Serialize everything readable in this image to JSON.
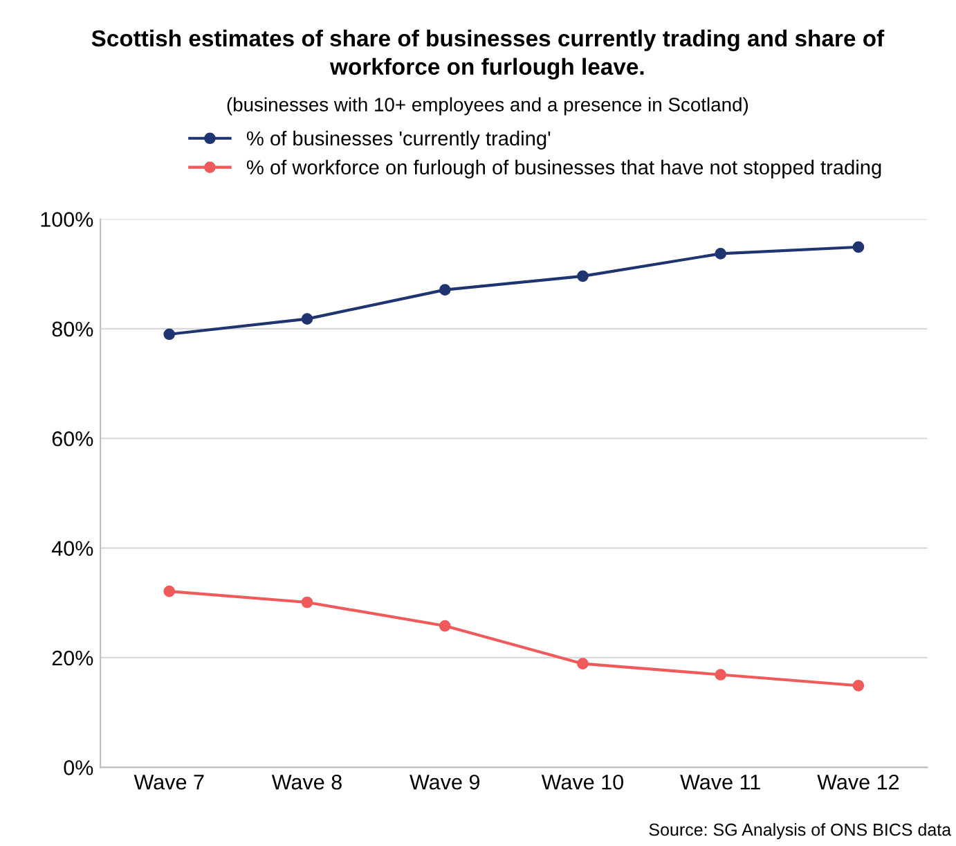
{
  "chart_data": {
    "type": "line",
    "title": "Scottish estimates of share of businesses currently trading and share of\nworkforce on furlough leave.",
    "subtitle": "(businesses with 10+ employees and a presence in Scotland)",
    "categories": [
      "Wave 7",
      "Wave 8",
      "Wave 9",
      "Wave 10",
      "Wave 11",
      "Wave 12"
    ],
    "series": [
      {
        "name": "% of businesses 'currently trading'",
        "color": "#1f3470",
        "values": [
          79.0,
          81.8,
          87.1,
          89.6,
          93.7,
          94.9
        ]
      },
      {
        "name": "% of workforce on furlough of businesses that have not stopped trading",
        "color": "#f05a5a",
        "values": [
          32.1,
          30.1,
          25.8,
          18.9,
          16.9,
          14.9
        ]
      }
    ],
    "ylim": [
      0,
      100
    ],
    "yticks": [
      {
        "value": 0,
        "label": "0%"
      },
      {
        "value": 20,
        "label": "20%"
      },
      {
        "value": 40,
        "label": "40%"
      },
      {
        "value": 60,
        "label": "60%"
      },
      {
        "value": 80,
        "label": "80%"
      },
      {
        "value": 100,
        "label": "100%"
      }
    ],
    "grid": "y",
    "legend": "top",
    "marker": "circle",
    "line_style": "solid",
    "annotations": [
      "Source: SG Analysis of ONS BICS data"
    ]
  }
}
